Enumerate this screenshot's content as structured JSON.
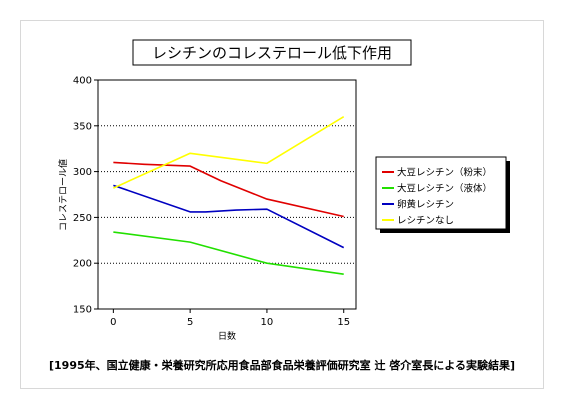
{
  "chart_data": {
    "type": "line",
    "title": "レシチンのコレステロール低下作用",
    "xlabel": "日数",
    "ylabel": "コレステロール値",
    "x": [
      0,
      5,
      10,
      15
    ],
    "xticks": [
      "0",
      "5",
      "10",
      "15"
    ],
    "yticks": [
      "150",
      "200",
      "250",
      "300",
      "350",
      "400"
    ],
    "xlim": [
      -1,
      15.8
    ],
    "ylim": [
      150,
      400
    ],
    "grid": "horizontal-dotted",
    "legend_position": "right",
    "series": [
      {
        "name": "大豆レシチン（粉末）",
        "color": "#e00000",
        "x": [
          0,
          2,
          5,
          7,
          10,
          15
        ],
        "values": [
          310,
          308,
          306,
          290,
          270,
          251
        ]
      },
      {
        "name": "大豆レシチン（液体）",
        "color": "#22e000",
        "x": [
          0,
          5,
          10,
          15
        ],
        "values": [
          234,
          223,
          200,
          188
        ]
      },
      {
        "name": "卵黄レシチン",
        "color": "#0000c0",
        "x": [
          0,
          5,
          6,
          8,
          10,
          15
        ],
        "values": [
          285,
          256,
          256,
          258,
          259,
          217
        ]
      },
      {
        "name": "レシチンなし",
        "color": "#ffff00",
        "x": [
          0,
          5,
          10,
          15
        ],
        "values": [
          282,
          320,
          309,
          360
        ]
      }
    ]
  },
  "caption": "[1995年、国立健康・栄養研究所応用食品部食品栄養評価研究室 辻 啓介室長による実験結果]"
}
